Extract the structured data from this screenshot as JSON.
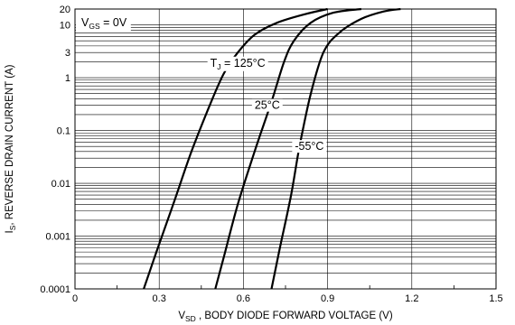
{
  "chart_data": {
    "type": "line",
    "xlabel": {
      "prefix": "V",
      "sub": "SD",
      "rest": " , BODY DIODE FORWARD VOLTAGE (V)"
    },
    "ylabel": {
      "prefix": "I",
      "sub": "S",
      "rest": ", REVERSE DRAIN CURRENT (A)"
    },
    "condition": {
      "prefix": "V",
      "sub": "GS",
      "rest": " = 0V"
    },
    "xlim": [
      0,
      1.5
    ],
    "ylim": [
      0.0001,
      20
    ],
    "yscale": "log",
    "grid": true,
    "x_ticks": [
      {
        "v": 0,
        "label": "0"
      },
      {
        "v": 0.3,
        "label": "0.3"
      },
      {
        "v": 0.6,
        "label": "0.6"
      },
      {
        "v": 0.9,
        "label": "0.9"
      },
      {
        "v": 1.2,
        "label": "1.2"
      },
      {
        "v": 1.5,
        "label": "1.5"
      }
    ],
    "y_ticks": [
      {
        "v": 20,
        "label": "20"
      },
      {
        "v": 10,
        "label": "10"
      },
      {
        "v": 3,
        "label": "3"
      },
      {
        "v": 1,
        "label": "1"
      },
      {
        "v": 0.1,
        "label": "0.1"
      },
      {
        "v": 0.01,
        "label": "0.01"
      },
      {
        "v": 0.001,
        "label": "0.001"
      },
      {
        "v": 0.0001,
        "label": "0.0001"
      }
    ],
    "series": [
      {
        "label_prefix": "T",
        "label_sub": "J",
        "label_rest": " = 125°C",
        "label_at": {
          "x": 0.58,
          "y": 1.9
        },
        "points": [
          [
            0.245,
            0.0001
          ],
          [
            0.29,
            0.0005
          ],
          [
            0.35,
            0.004
          ],
          [
            0.415,
            0.04
          ],
          [
            0.48,
            0.3
          ],
          [
            0.53,
            1.2
          ],
          [
            0.58,
            3
          ],
          [
            0.64,
            6.5
          ],
          [
            0.72,
            11
          ],
          [
            0.82,
            16
          ],
          [
            0.9,
            20
          ]
        ]
      },
      {
        "label_prefix": "",
        "label_sub": "",
        "label_rest": "25°C",
        "label_at": {
          "x": 0.685,
          "y": 0.3
        },
        "points": [
          [
            0.5,
            0.0001
          ],
          [
            0.535,
            0.0005
          ],
          [
            0.58,
            0.004
          ],
          [
            0.64,
            0.04
          ],
          [
            0.7,
            0.35
          ],
          [
            0.745,
            2
          ],
          [
            0.78,
            5
          ],
          [
            0.84,
            11
          ],
          [
            0.92,
            17
          ],
          [
            1.02,
            20
          ]
        ]
      },
      {
        "label_prefix": "",
        "label_sub": "",
        "label_rest": "-55°C",
        "label_at": {
          "x": 0.835,
          "y": 0.05
        },
        "points": [
          [
            0.7,
            0.0001
          ],
          [
            0.73,
            0.0006
          ],
          [
            0.77,
            0.006
          ],
          [
            0.8,
            0.05
          ],
          [
            0.84,
            0.5
          ],
          [
            0.885,
            3
          ],
          [
            0.94,
            7
          ],
          [
            1.02,
            13
          ],
          [
            1.1,
            18
          ],
          [
            1.16,
            20
          ]
        ]
      }
    ]
  }
}
